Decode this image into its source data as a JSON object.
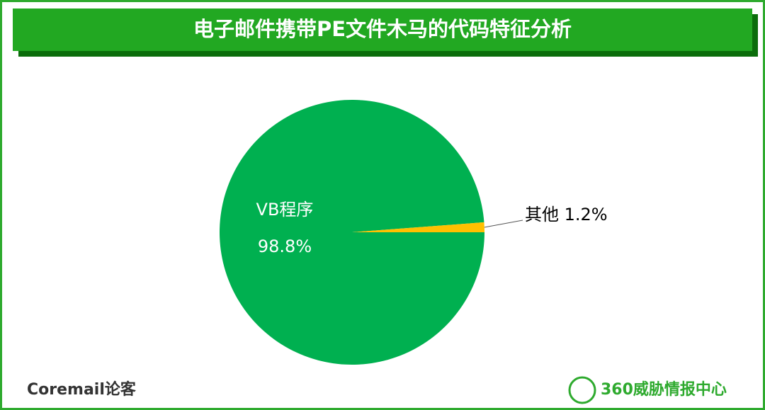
{
  "chart_data": {
    "type": "pie",
    "title": "电子邮件携带PE文件木马的代码特征分析",
    "categories": [
      "VB程序",
      "其他"
    ],
    "values": [
      98.8,
      1.2
    ],
    "value_labels": [
      "98.8%",
      "1.2%"
    ],
    "colors": [
      "#00b050",
      "#ffc000"
    ]
  },
  "footer": {
    "left_logo": "Coremail论客",
    "right_logo": "360威胁情报中心"
  }
}
